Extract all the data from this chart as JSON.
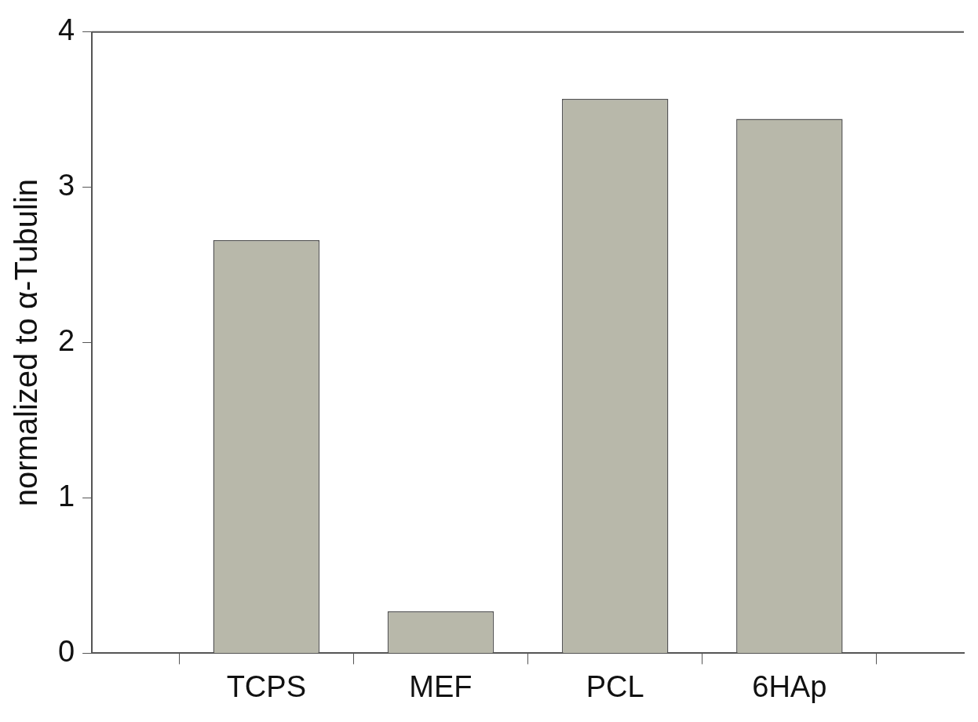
{
  "chart_data": {
    "type": "bar",
    "ylabel": "normalized to α-Tubulin",
    "categories": [
      null,
      "TCPS",
      "MEF",
      "PCL",
      "6HAp",
      null
    ],
    "values": [
      null,
      2.66,
      0.27,
      3.57,
      3.44,
      null
    ],
    "color": "#b8b8aa",
    "ylim": [
      0,
      4
    ],
    "yticks": [
      0,
      1,
      2,
      3,
      4
    ],
    "grid": false,
    "legend": false
  }
}
